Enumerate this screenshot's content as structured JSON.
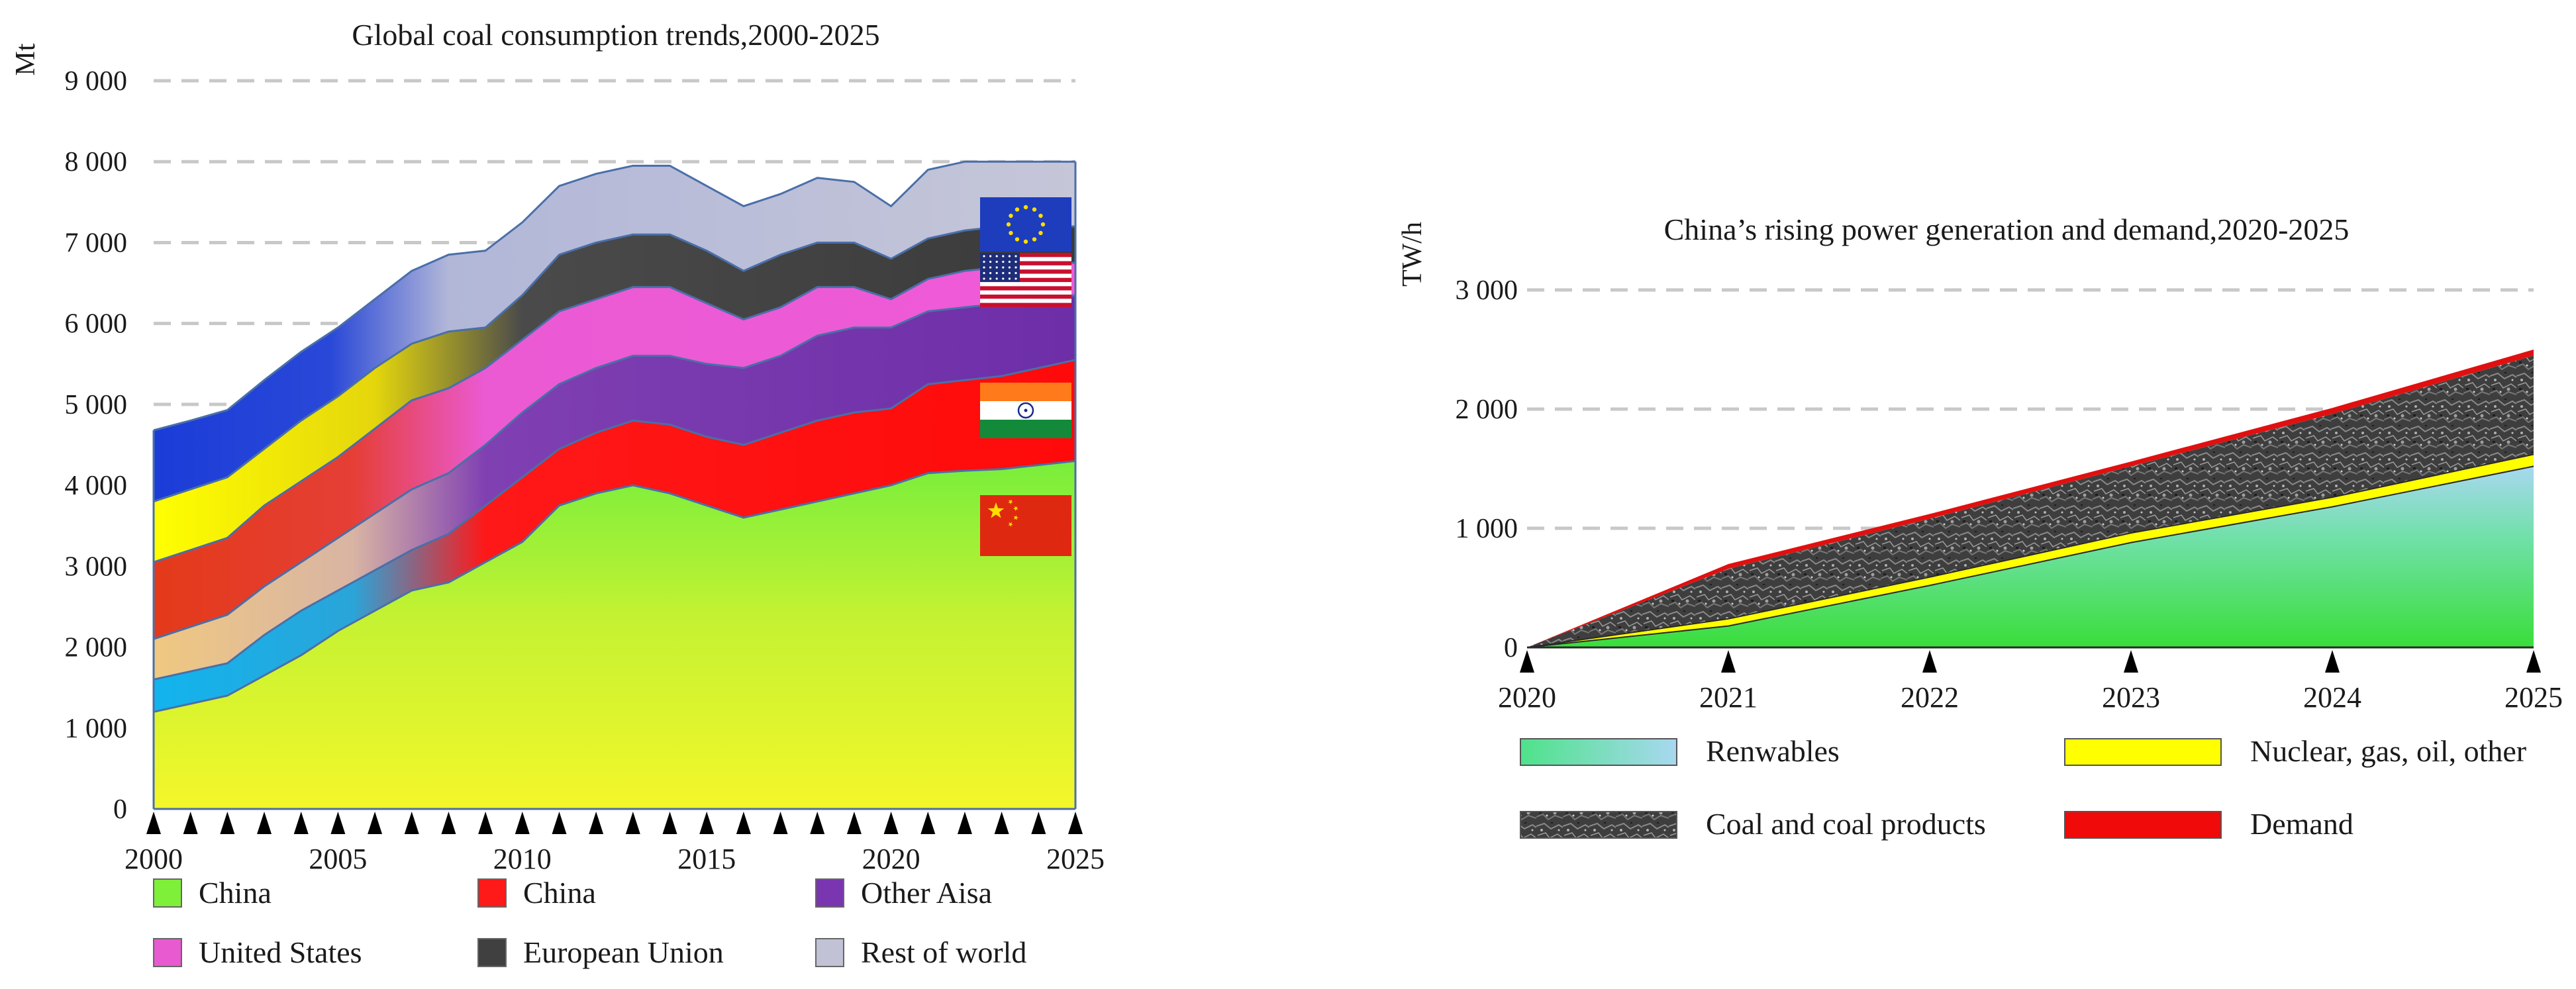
{
  "chart_data": [
    {
      "type": "area",
      "stacked": true,
      "title": "Global coal consumption trends,2000-2025",
      "ylabel": "Mt",
      "xlabel": "",
      "ylim": [
        0,
        9000
      ],
      "yticks": [
        0,
        1000,
        2000,
        3000,
        4000,
        5000,
        6000,
        7000,
        8000,
        9000
      ],
      "ytick_labels": [
        "0",
        "1 000",
        "2 000",
        "3 000",
        "4 000",
        "5 000",
        "6 000",
        "7 000",
        "8 000",
        "9 000"
      ],
      "xlim": [
        2000,
        2025
      ],
      "xticks": [
        2000,
        2005,
        2010,
        2015,
        2020,
        2025
      ],
      "xtick_labels": [
        "2000",
        "2005",
        "2010",
        "2015",
        "2020",
        "2025"
      ],
      "x": [
        2000,
        2001,
        2002,
        2003,
        2004,
        2005,
        2006,
        2007,
        2008,
        2009,
        2010,
        2011,
        2012,
        2013,
        2014,
        2015,
        2016,
        2017,
        2018,
        2019,
        2020,
        2021,
        2022,
        2023,
        2024,
        2025
      ],
      "grid": "horizontal dashed",
      "series": [
        {
          "name": "China",
          "color": "#7ff03a",
          "cumulative": [
            1200,
            1300,
            1400,
            1650,
            1900,
            2200,
            2450,
            2700,
            2800,
            3050,
            3300,
            3750,
            3900,
            4000,
            3900,
            3750,
            3600,
            3700,
            3800,
            3900,
            4000,
            4150,
            4180,
            4200,
            4250,
            4300
          ]
        },
        {
          "name": "China",
          "color": "#ff1a1a",
          "cumulative": [
            1600,
            1700,
            1800,
            2150,
            2450,
            2700,
            2950,
            3200,
            3400,
            3750,
            4100,
            4450,
            4650,
            4800,
            4750,
            4600,
            4500,
            4650,
            4800,
            4900,
            4950,
            5250,
            5300,
            5350,
            5450,
            5550
          ]
        },
        {
          "name": "Other Aisa",
          "color": "#7a35b0",
          "cumulative": [
            2100,
            2250,
            2400,
            2750,
            3050,
            3350,
            3650,
            3950,
            4150,
            4500,
            4900,
            5250,
            5450,
            5600,
            5600,
            5500,
            5450,
            5600,
            5850,
            5950,
            5950,
            6150,
            6200,
            6250,
            6300,
            6350
          ]
        },
        {
          "name": "United States",
          "color": "#e85ad0",
          "cumulative": [
            3050,
            3200,
            3350,
            3750,
            4050,
            4350,
            4700,
            5050,
            5200,
            5450,
            5800,
            6150,
            6300,
            6450,
            6450,
            6250,
            6050,
            6200,
            6450,
            6450,
            6300,
            6550,
            6650,
            6700,
            6750,
            6750
          ]
        },
        {
          "name": "European Union",
          "color": "#404040",
          "cumulative": [
            3800,
            3950,
            4100,
            4450,
            4800,
            5100,
            5450,
            5750,
            5900,
            5950,
            6350,
            6850,
            7000,
            7100,
            7100,
            6900,
            6650,
            6850,
            7000,
            7000,
            6800,
            7050,
            7150,
            7200,
            7200,
            7200
          ]
        },
        {
          "name": "Rest of world",
          "color": "#c2c2d6",
          "cumulative": [
            4680,
            4800,
            4930,
            5300,
            5650,
            5950,
            6300,
            6650,
            6850,
            6900,
            7250,
            7700,
            7850,
            7950,
            7950,
            7700,
            7450,
            7600,
            7800,
            7750,
            7450,
            7900,
            8000,
            8000,
            8000,
            8000
          ]
        }
      ],
      "legend": [
        "China",
        "China",
        "Other Aisa",
        "United States",
        "European Union",
        "Rest of world"
      ],
      "legend_placement": "bottom",
      "flags": [
        "eu-flag",
        "us-flag",
        "india-flag",
        "china-flag"
      ]
    },
    {
      "type": "area",
      "stacked": true,
      "title": "China’s rising power generation and demand,2020-2025",
      "ylabel": "TW/h",
      "xlabel": "",
      "ylim": [
        0,
        3000
      ],
      "yticks": [
        0,
        1000,
        2000,
        3000
      ],
      "ytick_labels": [
        "0",
        "1 000",
        "2 000",
        "3 000"
      ],
      "xlim": [
        2020,
        2025
      ],
      "xticks": [
        2020,
        2021,
        2022,
        2023,
        2024,
        2025
      ],
      "xtick_labels": [
        "2020",
        "2021",
        "2022",
        "2023",
        "2024",
        "2025"
      ],
      "x": [
        2020,
        2021,
        2022,
        2023,
        2024,
        2025
      ],
      "grid": "horizontal dashed",
      "series": [
        {
          "name": "Renwables",
          "color": "#5fe0a0",
          "cumulative": [
            0,
            180,
            520,
            880,
            1180,
            1520
          ]
        },
        {
          "name": "Nuclear, gas, oil, other",
          "color": "#ffff00",
          "cumulative": [
            0,
            240,
            590,
            960,
            1260,
            1620
          ]
        },
        {
          "name": "Coal and coal products",
          "color": "#4a4a4a",
          "cumulative": [
            0,
            660,
            1080,
            1520,
            1960,
            2450
          ]
        },
        {
          "name": "Demand",
          "color": "#e01010",
          "cumulative": [
            0,
            700,
            1120,
            1560,
            2010,
            2500
          ]
        }
      ],
      "legend": [
        "Renwables",
        "Nuclear, gas, oil, other",
        "Coal and coal products",
        "Demand"
      ],
      "legend_placement": "bottom"
    }
  ]
}
